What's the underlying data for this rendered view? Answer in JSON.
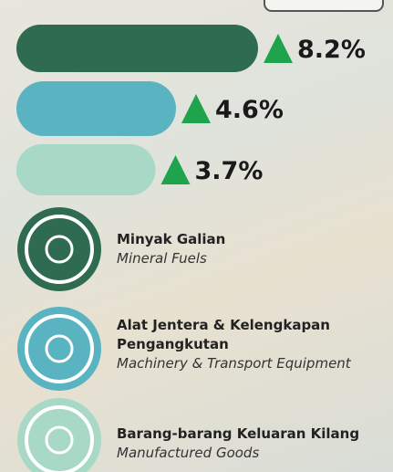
{
  "chart_data": {
    "type": "bar",
    "categories": [
      "Minyak Galian",
      "Alat Jentera & Kelengkapan Pengangkutan",
      "Barang-barang Keluaran Kilang"
    ],
    "categories_en": [
      "Mineral Fuels",
      "Machinery & Transport Equipment",
      "Manufactured Goods"
    ],
    "values": [
      8.2,
      4.6,
      3.7
    ],
    "value_labels": [
      "8.2%",
      "4.6%",
      "3.7%"
    ],
    "colors": [
      "#2e6b50",
      "#5ab3c1",
      "#a8d8c6"
    ],
    "arrow_color": "#1fa34c"
  }
}
